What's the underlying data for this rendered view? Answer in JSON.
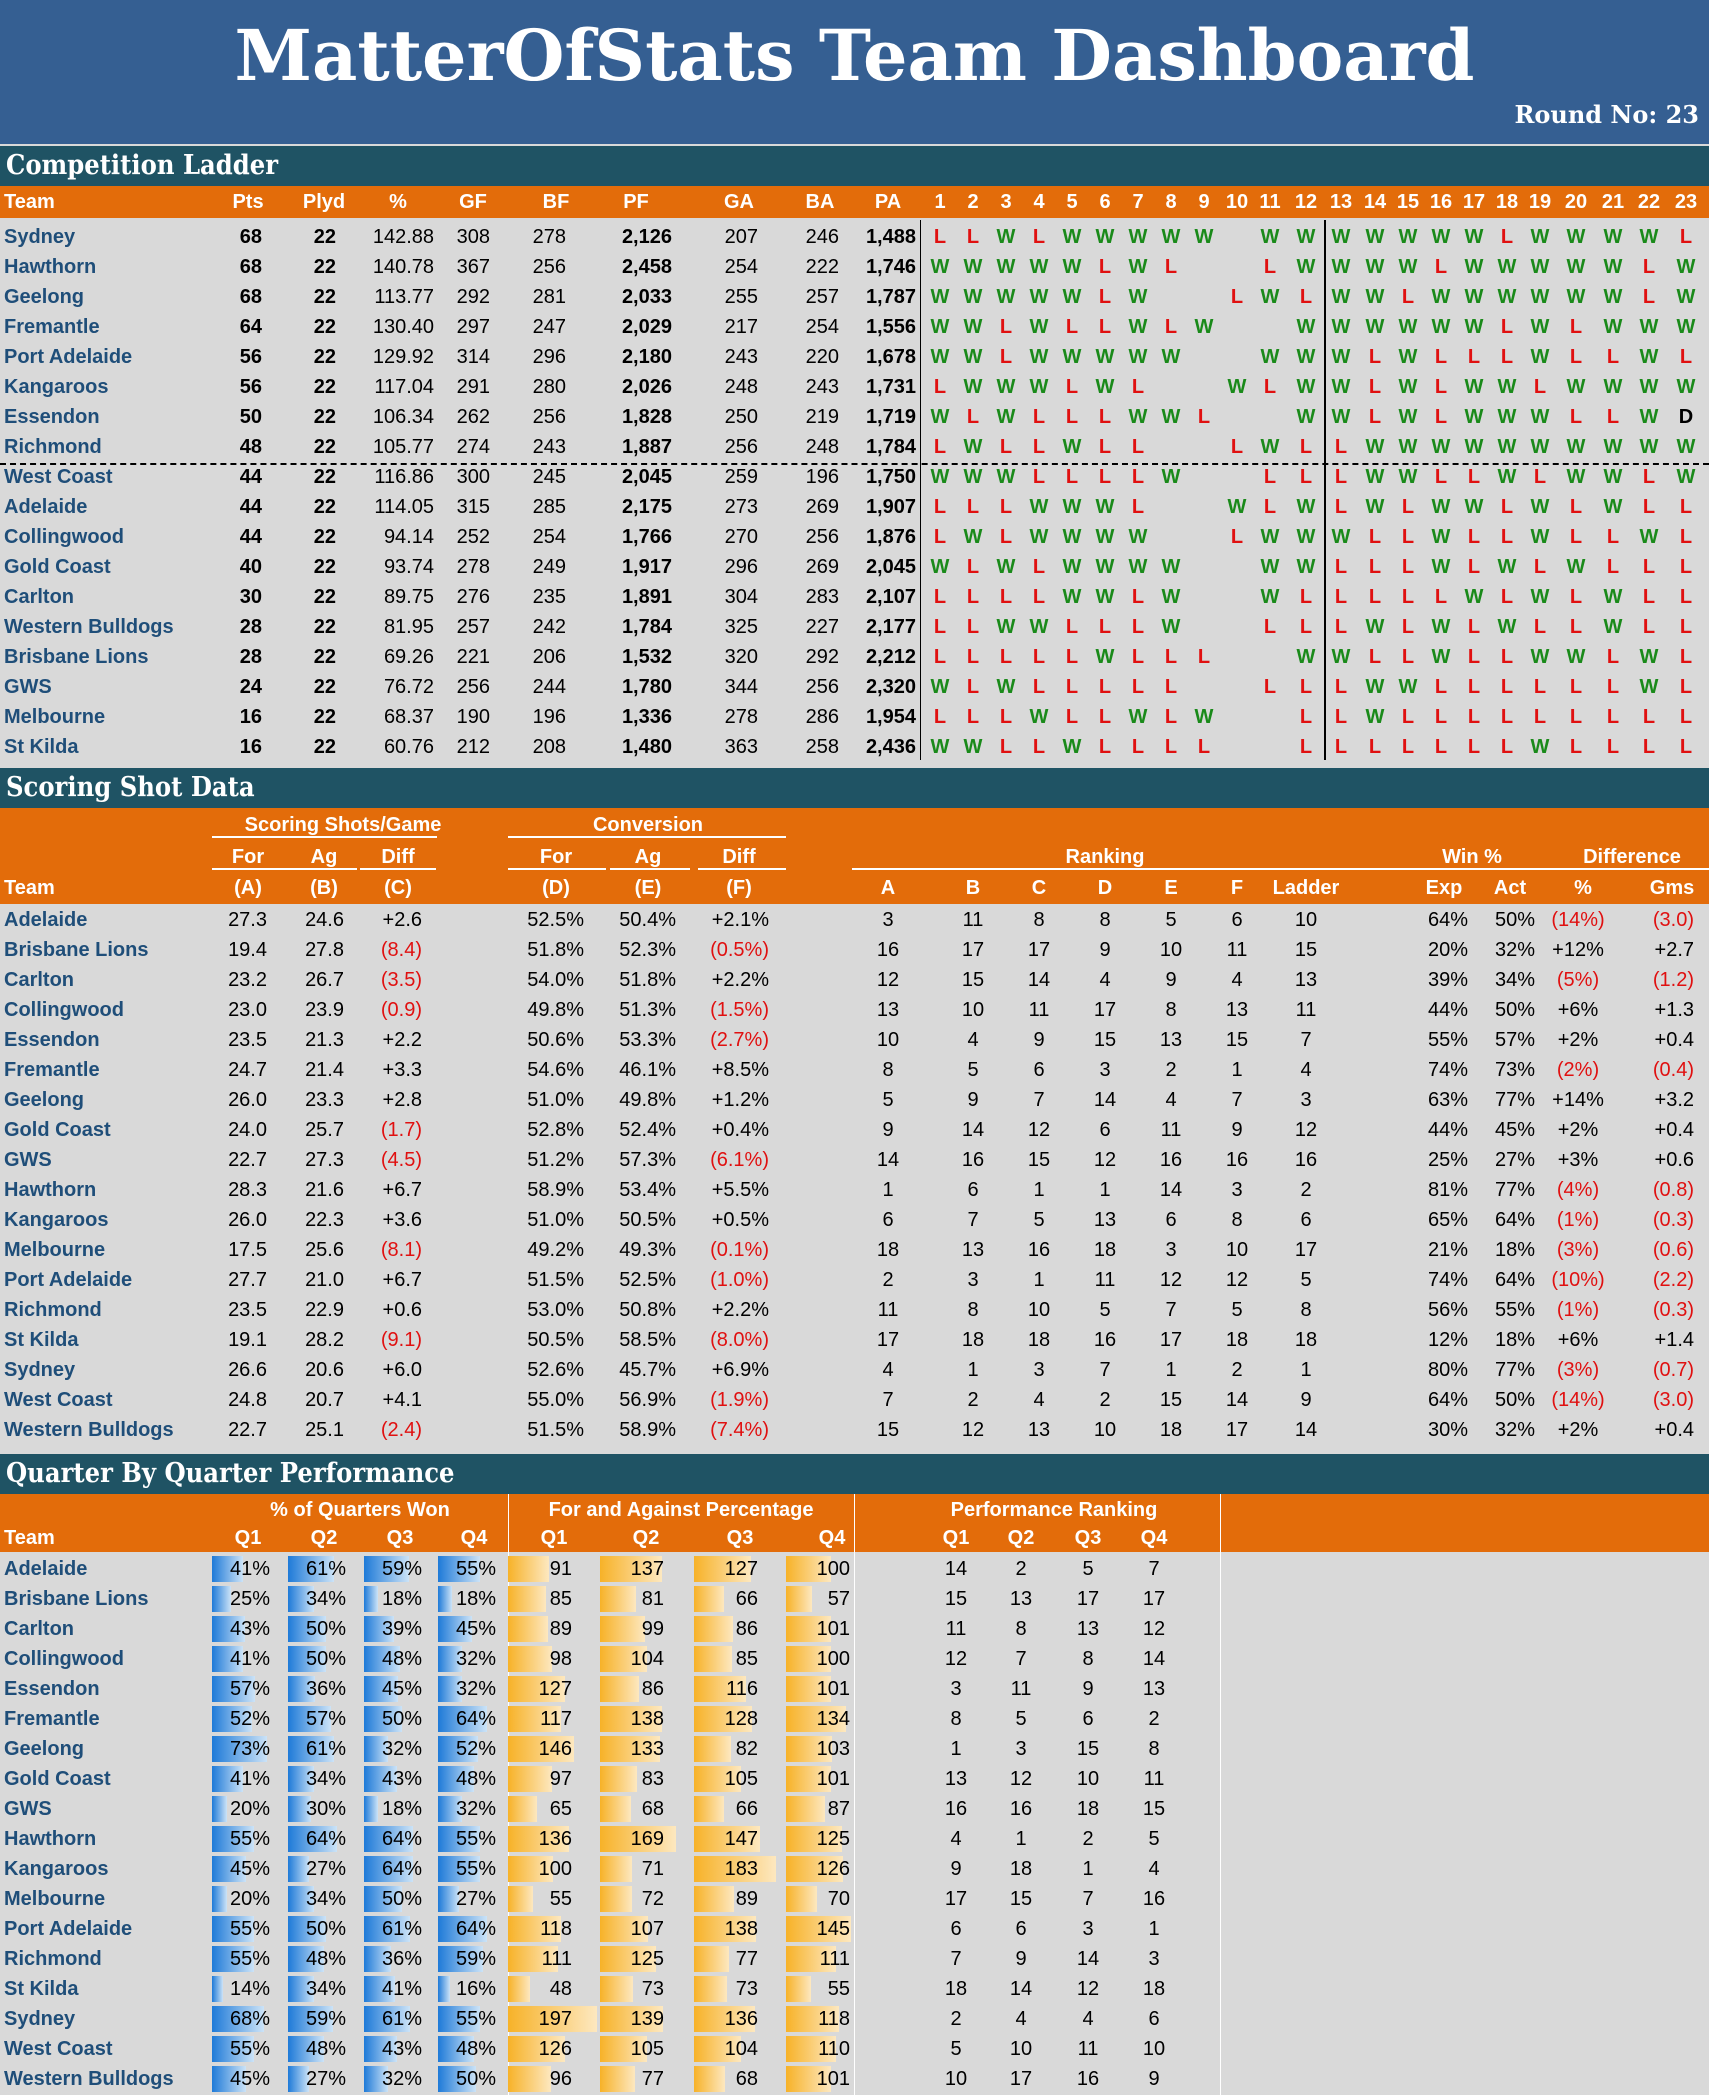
{
  "dashboard": {
    "title": "MatterOfStats Team Dashboard",
    "round_label": "Round No:",
    "round": "23"
  },
  "ladder": {
    "title": "Competition Ladder",
    "headers": [
      "Team",
      "Pts",
      "Plyd",
      "%",
      "GF",
      "BF",
      "PF",
      "GA",
      "BA",
      "PA"
    ],
    "round_headers": [
      "1",
      "2",
      "3",
      "4",
      "5",
      "6",
      "7",
      "8",
      "9",
      "10",
      "11",
      "12",
      "13",
      "14",
      "15",
      "16",
      "17",
      "18",
      "19",
      "20",
      "21",
      "22",
      "23"
    ],
    "rows": [
      {
        "team": "Sydney",
        "pts": "68",
        "plyd": "22",
        "pct": "142.88",
        "gf": "308",
        "bf": "278",
        "pf": "2,126",
        "ga": "207",
        "ba": "246",
        "pa": "1,488",
        "results": "LLWLWWWWW.WWWWWWWLWWWWL"
      },
      {
        "team": "Hawthorn",
        "pts": "68",
        "plyd": "22",
        "pct": "140.78",
        "gf": "367",
        "bf": "256",
        "pf": "2,458",
        "ga": "254",
        "ba": "222",
        "pa": "1,746",
        "results": "WWWWWLWL..LWWWWLWWWWWLW"
      },
      {
        "team": "Geelong",
        "pts": "68",
        "plyd": "22",
        "pct": "113.77",
        "gf": "292",
        "bf": "281",
        "pf": "2,033",
        "ga": "255",
        "ba": "257",
        "pa": "1,787",
        "results": "WWWWWLW..LWLWWLWWWWWWLW"
      },
      {
        "team": "Fremantle",
        "pts": "64",
        "plyd": "22",
        "pct": "130.40",
        "gf": "297",
        "bf": "247",
        "pf": "2,029",
        "ga": "217",
        "ba": "254",
        "pa": "1,556",
        "results": "WWLWLLWLW..WWWWWWLWLWWW"
      },
      {
        "team": "Port Adelaide",
        "pts": "56",
        "plyd": "22",
        "pct": "129.92",
        "gf": "314",
        "bf": "296",
        "pf": "2,180",
        "ga": "243",
        "ba": "220",
        "pa": "1,678",
        "results": "WWLWWWWW..WWWLWLLLWLLWL"
      },
      {
        "team": "Kangaroos",
        "pts": "56",
        "plyd": "22",
        "pct": "117.04",
        "gf": "291",
        "bf": "280",
        "pf": "2,026",
        "ga": "248",
        "ba": "243",
        "pa": "1,731",
        "results": "LWWWLWL..WLWWLWLWWLWWWW"
      },
      {
        "team": "Essendon",
        "pts": "50",
        "plyd": "22",
        "pct": "106.34",
        "gf": "262",
        "bf": "256",
        "pf": "1,828",
        "ga": "250",
        "ba": "219",
        "pa": "1,719",
        "results": "WLWLLLWWL..WWLWLWWWLLWD"
      },
      {
        "team": "Richmond",
        "pts": "48",
        "plyd": "22",
        "pct": "105.77",
        "gf": "274",
        "bf": "243",
        "pf": "1,887",
        "ga": "256",
        "ba": "248",
        "pa": "1,784",
        "results": "LWLLWLL..LWLLWWWWWWWWWW"
      },
      {
        "team": "West Coast",
        "pts": "44",
        "plyd": "22",
        "pct": "116.86",
        "gf": "300",
        "bf": "245",
        "pf": "2,045",
        "ga": "259",
        "ba": "196",
        "pa": "1,750",
        "results": "WWWLLLLW..LLLWWLLWLWWLWW"
      },
      {
        "team": "Adelaide",
        "pts": "44",
        "plyd": "22",
        "pct": "114.05",
        "gf": "315",
        "bf": "285",
        "pf": "2,175",
        "ga": "273",
        "ba": "269",
        "pa": "1,907",
        "results": "LLLWWWL..WLWLWLWWLWLWLLW"
      },
      {
        "team": "Collingwood",
        "pts": "44",
        "plyd": "22",
        "pct": "94.14",
        "gf": "252",
        "bf": "254",
        "pf": "1,766",
        "ga": "270",
        "ba": "256",
        "pa": "1,876",
        "results": "LWLWWWW..LWWWLLWLLWLLWL"
      },
      {
        "team": "Gold Coast",
        "pts": "40",
        "plyd": "22",
        "pct": "93.74",
        "gf": "278",
        "bf": "249",
        "pf": "1,917",
        "ga": "296",
        "ba": "269",
        "pa": "2,045",
        "results": "WLWLWWWW..WWLLLWLWLWLLL"
      },
      {
        "team": "Carlton",
        "pts": "30",
        "plyd": "22",
        "pct": "89.75",
        "gf": "276",
        "bf": "235",
        "pf": "1,891",
        "ga": "304",
        "ba": "283",
        "pa": "2,107",
        "results": "LLLLWWLW..WLLLLLWLWLWLLD"
      },
      {
        "team": "Western Bulldogs",
        "pts": "28",
        "plyd": "22",
        "pct": "81.95",
        "gf": "257",
        "bf": "242",
        "pf": "1,784",
        "ga": "325",
        "ba": "227",
        "pa": "2,177",
        "results": "LLWWLLLW..LLLWLWLWLLWLLL"
      },
      {
        "team": "Brisbane Lions",
        "pts": "28",
        "plyd": "22",
        "pct": "69.26",
        "gf": "221",
        "bf": "206",
        "pf": "1,532",
        "ga": "320",
        "ba": "292",
        "pa": "2,212",
        "results": "LLLLLWLLL..WWLLWLLWWLWLL"
      },
      {
        "team": "GWS",
        "pts": "24",
        "plyd": "22",
        "pct": "76.72",
        "gf": "256",
        "bf": "244",
        "pf": "1,780",
        "ga": "344",
        "ba": "256",
        "pa": "2,320",
        "results": "WLWLLLLL..LLLWWLLLLLLWLW"
      },
      {
        "team": "Melbourne",
        "pts": "16",
        "plyd": "22",
        "pct": "68.37",
        "gf": "190",
        "bf": "196",
        "pf": "1,336",
        "ga": "278",
        "ba": "286",
        "pa": "1,954",
        "results": "LLLWLLWLW..LLWLLLLLLLLLL"
      },
      {
        "team": "St Kilda",
        "pts": "16",
        "plyd": "22",
        "pct": "60.76",
        "gf": "212",
        "bf": "208",
        "pf": "1,480",
        "ga": "363",
        "ba": "258",
        "pa": "2,436",
        "results": "WWLLWLLLL..LLLLLLLWLLLLL"
      }
    ]
  },
  "scoring": {
    "title": "Scoring Shot Data",
    "group_headers": {
      "shots": "Scoring Shots/Game",
      "conv": "Conversion",
      "ranking": "Ranking",
      "win": "Win %",
      "diff": "Difference"
    },
    "sub_headers": {
      "for": "For",
      "ag": "Ag",
      "diff": "Diff",
      "exp": "Exp",
      "act": "Act",
      "pct": "%",
      "gms": "Gms",
      "team": "Team"
    },
    "letters": [
      "(A)",
      "(B)",
      "(C)",
      "(D)",
      "(E)",
      "(F)"
    ],
    "rank_headers": [
      "A",
      "B",
      "C",
      "D",
      "E",
      "F",
      "Ladder"
    ],
    "rows": [
      {
        "team": "Adelaide",
        "a": "27.3",
        "b": "24.6",
        "c": "+2.6",
        "d": "52.5%",
        "e": "50.4%",
        "f": "+2.1%",
        "rank": [
          "3",
          "11",
          "8",
          "8",
          "5",
          "6",
          "10"
        ],
        "exp": "64%",
        "act": "50%",
        "dp": "(14%)",
        "dg": "(3.0)"
      },
      {
        "team": "Brisbane Lions",
        "a": "19.4",
        "b": "27.8",
        "c": "(8.4)",
        "d": "51.8%",
        "e": "52.3%",
        "f": "(0.5%)",
        "rank": [
          "16",
          "17",
          "17",
          "9",
          "10",
          "11",
          "15"
        ],
        "exp": "20%",
        "act": "32%",
        "dp": "+12%",
        "dg": "+2.7"
      },
      {
        "team": "Carlton",
        "a": "23.2",
        "b": "26.7",
        "c": "(3.5)",
        "d": "54.0%",
        "e": "51.8%",
        "f": "+2.2%",
        "rank": [
          "12",
          "15",
          "14",
          "4",
          "9",
          "4",
          "13"
        ],
        "exp": "39%",
        "act": "34%",
        "dp": "(5%)",
        "dg": "(1.2)"
      },
      {
        "team": "Collingwood",
        "a": "23.0",
        "b": "23.9",
        "c": "(0.9)",
        "d": "49.8%",
        "e": "51.3%",
        "f": "(1.5%)",
        "rank": [
          "13",
          "10",
          "11",
          "17",
          "8",
          "13",
          "11"
        ],
        "exp": "44%",
        "act": "50%",
        "dp": "+6%",
        "dg": "+1.3"
      },
      {
        "team": "Essendon",
        "a": "23.5",
        "b": "21.3",
        "c": "+2.2",
        "d": "50.6%",
        "e": "53.3%",
        "f": "(2.7%)",
        "rank": [
          "10",
          "4",
          "9",
          "15",
          "13",
          "15",
          "7"
        ],
        "exp": "55%",
        "act": "57%",
        "dp": "+2%",
        "dg": "+0.4"
      },
      {
        "team": "Fremantle",
        "a": "24.7",
        "b": "21.4",
        "c": "+3.3",
        "d": "54.6%",
        "e": "46.1%",
        "f": "+8.5%",
        "rank": [
          "8",
          "5",
          "6",
          "3",
          "2",
          "1",
          "4"
        ],
        "exp": "74%",
        "act": "73%",
        "dp": "(2%)",
        "dg": "(0.4)"
      },
      {
        "team": "Geelong",
        "a": "26.0",
        "b": "23.3",
        "c": "+2.8",
        "d": "51.0%",
        "e": "49.8%",
        "f": "+1.2%",
        "rank": [
          "5",
          "9",
          "7",
          "14",
          "4",
          "7",
          "3"
        ],
        "exp": "63%",
        "act": "77%",
        "dp": "+14%",
        "dg": "+3.2"
      },
      {
        "team": "Gold Coast",
        "a": "24.0",
        "b": "25.7",
        "c": "(1.7)",
        "d": "52.8%",
        "e": "52.4%",
        "f": "+0.4%",
        "rank": [
          "9",
          "14",
          "12",
          "6",
          "11",
          "9",
          "12"
        ],
        "exp": "44%",
        "act": "45%",
        "dp": "+2%",
        "dg": "+0.4"
      },
      {
        "team": "GWS",
        "a": "22.7",
        "b": "27.3",
        "c": "(4.5)",
        "d": "51.2%",
        "e": "57.3%",
        "f": "(6.1%)",
        "rank": [
          "14",
          "16",
          "15",
          "12",
          "16",
          "16",
          "16"
        ],
        "exp": "25%",
        "act": "27%",
        "dp": "+3%",
        "dg": "+0.6"
      },
      {
        "team": "Hawthorn",
        "a": "28.3",
        "b": "21.6",
        "c": "+6.7",
        "d": "58.9%",
        "e": "53.4%",
        "f": "+5.5%",
        "rank": [
          "1",
          "6",
          "1",
          "1",
          "14",
          "3",
          "2"
        ],
        "exp": "81%",
        "act": "77%",
        "dp": "(4%)",
        "dg": "(0.8)"
      },
      {
        "team": "Kangaroos",
        "a": "26.0",
        "b": "22.3",
        "c": "+3.6",
        "d": "51.0%",
        "e": "50.5%",
        "f": "+0.5%",
        "rank": [
          "6",
          "7",
          "5",
          "13",
          "6",
          "8",
          "6"
        ],
        "exp": "65%",
        "act": "64%",
        "dp": "(1%)",
        "dg": "(0.3)"
      },
      {
        "team": "Melbourne",
        "a": "17.5",
        "b": "25.6",
        "c": "(8.1)",
        "d": "49.2%",
        "e": "49.3%",
        "f": "(0.1%)",
        "rank": [
          "18",
          "13",
          "16",
          "18",
          "3",
          "10",
          "17"
        ],
        "exp": "21%",
        "act": "18%",
        "dp": "(3%)",
        "dg": "(0.6)"
      },
      {
        "team": "Port Adelaide",
        "a": "27.7",
        "b": "21.0",
        "c": "+6.7",
        "d": "51.5%",
        "e": "52.5%",
        "f": "(1.0%)",
        "rank": [
          "2",
          "3",
          "1",
          "11",
          "12",
          "12",
          "5"
        ],
        "exp": "74%",
        "act": "64%",
        "dp": "(10%)",
        "dg": "(2.2)"
      },
      {
        "team": "Richmond",
        "a": "23.5",
        "b": "22.9",
        "c": "+0.6",
        "d": "53.0%",
        "e": "50.8%",
        "f": "+2.2%",
        "rank": [
          "11",
          "8",
          "10",
          "5",
          "7",
          "5",
          "8"
        ],
        "exp": "56%",
        "act": "55%",
        "dp": "(1%)",
        "dg": "(0.3)"
      },
      {
        "team": "St Kilda",
        "a": "19.1",
        "b": "28.2",
        "c": "(9.1)",
        "d": "50.5%",
        "e": "58.5%",
        "f": "(8.0%)",
        "rank": [
          "17",
          "18",
          "18",
          "16",
          "17",
          "18",
          "18"
        ],
        "exp": "12%",
        "act": "18%",
        "dp": "+6%",
        "dg": "+1.4"
      },
      {
        "team": "Sydney",
        "a": "26.6",
        "b": "20.6",
        "c": "+6.0",
        "d": "52.6%",
        "e": "45.7%",
        "f": "+6.9%",
        "rank": [
          "4",
          "1",
          "3",
          "7",
          "1",
          "2",
          "1"
        ],
        "exp": "80%",
        "act": "77%",
        "dp": "(3%)",
        "dg": "(0.7)"
      },
      {
        "team": "West Coast",
        "a": "24.8",
        "b": "20.7",
        "c": "+4.1",
        "d": "55.0%",
        "e": "56.9%",
        "f": "(1.9%)",
        "rank": [
          "7",
          "2",
          "4",
          "2",
          "15",
          "14",
          "9"
        ],
        "exp": "64%",
        "act": "50%",
        "dp": "(14%)",
        "dg": "(3.0)"
      },
      {
        "team": "Western Bulldogs",
        "a": "22.7",
        "b": "25.1",
        "c": "(2.4)",
        "d": "51.5%",
        "e": "58.9%",
        "f": "(7.4%)",
        "rank": [
          "15",
          "12",
          "13",
          "10",
          "18",
          "17",
          "14"
        ],
        "exp": "30%",
        "act": "32%",
        "dp": "+2%",
        "dg": "+0.4"
      }
    ]
  },
  "quarters": {
    "title": "Quarter By Quarter Performance",
    "group_headers": {
      "won": "% of Quarters Won",
      "fa": "For and Against Percentage",
      "rank": "Performance Ranking"
    },
    "team_header": "Team",
    "q_headers": [
      "Q1",
      "Q2",
      "Q3",
      "Q4"
    ],
    "rows": [
      {
        "team": "Adelaide",
        "won": [
          "41%",
          "61%",
          "59%",
          "55%"
        ],
        "fa": [
          "91",
          "137",
          "127",
          "100"
        ],
        "rank": [
          "14",
          "2",
          "5",
          "7"
        ]
      },
      {
        "team": "Brisbane Lions",
        "won": [
          "25%",
          "34%",
          "18%",
          "18%"
        ],
        "fa": [
          "85",
          "81",
          "66",
          "57"
        ],
        "rank": [
          "15",
          "13",
          "17",
          "17"
        ]
      },
      {
        "team": "Carlton",
        "won": [
          "43%",
          "50%",
          "39%",
          "45%"
        ],
        "fa": [
          "89",
          "99",
          "86",
          "101"
        ],
        "rank": [
          "11",
          "8",
          "13",
          "12"
        ]
      },
      {
        "team": "Collingwood",
        "won": [
          "41%",
          "50%",
          "48%",
          "32%"
        ],
        "fa": [
          "98",
          "104",
          "85",
          "100"
        ],
        "rank": [
          "12",
          "7",
          "8",
          "14"
        ]
      },
      {
        "team": "Essendon",
        "won": [
          "57%",
          "36%",
          "45%",
          "32%"
        ],
        "fa": [
          "127",
          "86",
          "116",
          "101"
        ],
        "rank": [
          "3",
          "11",
          "9",
          "13"
        ]
      },
      {
        "team": "Fremantle",
        "won": [
          "52%",
          "57%",
          "50%",
          "64%"
        ],
        "fa": [
          "117",
          "138",
          "128",
          "134"
        ],
        "rank": [
          "8",
          "5",
          "6",
          "2"
        ]
      },
      {
        "team": "Geelong",
        "won": [
          "73%",
          "61%",
          "32%",
          "52%"
        ],
        "fa": [
          "146",
          "133",
          "82",
          "103"
        ],
        "rank": [
          "1",
          "3",
          "15",
          "8"
        ]
      },
      {
        "team": "Gold Coast",
        "won": [
          "41%",
          "34%",
          "43%",
          "48%"
        ],
        "fa": [
          "97",
          "83",
          "105",
          "101"
        ],
        "rank": [
          "13",
          "12",
          "10",
          "11"
        ]
      },
      {
        "team": "GWS",
        "won": [
          "20%",
          "30%",
          "18%",
          "32%"
        ],
        "fa": [
          "65",
          "68",
          "66",
          "87"
        ],
        "rank": [
          "16",
          "16",
          "18",
          "15"
        ]
      },
      {
        "team": "Hawthorn",
        "won": [
          "55%",
          "64%",
          "64%",
          "55%"
        ],
        "fa": [
          "136",
          "169",
          "147",
          "125"
        ],
        "rank": [
          "4",
          "1",
          "2",
          "5"
        ]
      },
      {
        "team": "Kangaroos",
        "won": [
          "45%",
          "27%",
          "64%",
          "55%"
        ],
        "fa": [
          "100",
          "71",
          "183",
          "126"
        ],
        "rank": [
          "9",
          "18",
          "1",
          "4"
        ]
      },
      {
        "team": "Melbourne",
        "won": [
          "20%",
          "34%",
          "50%",
          "27%"
        ],
        "fa": [
          "55",
          "72",
          "89",
          "70"
        ],
        "rank": [
          "17",
          "15",
          "7",
          "16"
        ]
      },
      {
        "team": "Port Adelaide",
        "won": [
          "55%",
          "50%",
          "61%",
          "64%"
        ],
        "fa": [
          "118",
          "107",
          "138",
          "145"
        ],
        "rank": [
          "6",
          "6",
          "3",
          "1"
        ]
      },
      {
        "team": "Richmond",
        "won": [
          "55%",
          "48%",
          "36%",
          "59%"
        ],
        "fa": [
          "111",
          "125",
          "77",
          "111"
        ],
        "rank": [
          "7",
          "9",
          "14",
          "3"
        ]
      },
      {
        "team": "St Kilda",
        "won": [
          "14%",
          "34%",
          "41%",
          "16%"
        ],
        "fa": [
          "48",
          "73",
          "73",
          "55"
        ],
        "rank": [
          "18",
          "14",
          "12",
          "18"
        ]
      },
      {
        "team": "Sydney",
        "won": [
          "68%",
          "59%",
          "61%",
          "55%"
        ],
        "fa": [
          "197",
          "139",
          "136",
          "118"
        ],
        "rank": [
          "2",
          "4",
          "4",
          "6"
        ]
      },
      {
        "team": "West Coast",
        "won": [
          "55%",
          "48%",
          "43%",
          "48%"
        ],
        "fa": [
          "126",
          "105",
          "104",
          "110"
        ],
        "rank": [
          "5",
          "10",
          "11",
          "10"
        ]
      },
      {
        "team": "Western Bulldogs",
        "won": [
          "45%",
          "27%",
          "32%",
          "50%"
        ],
        "fa": [
          "96",
          "77",
          "68",
          "101"
        ],
        "rank": [
          "10",
          "17",
          "16",
          "9"
        ]
      }
    ]
  },
  "colors": {
    "title_band": "#355f92",
    "section_band": "#1f5364",
    "header_orange": "#e36c0a",
    "team_text": "#1f4e79",
    "win": "#1a8a1a",
    "loss": "#e01010"
  }
}
